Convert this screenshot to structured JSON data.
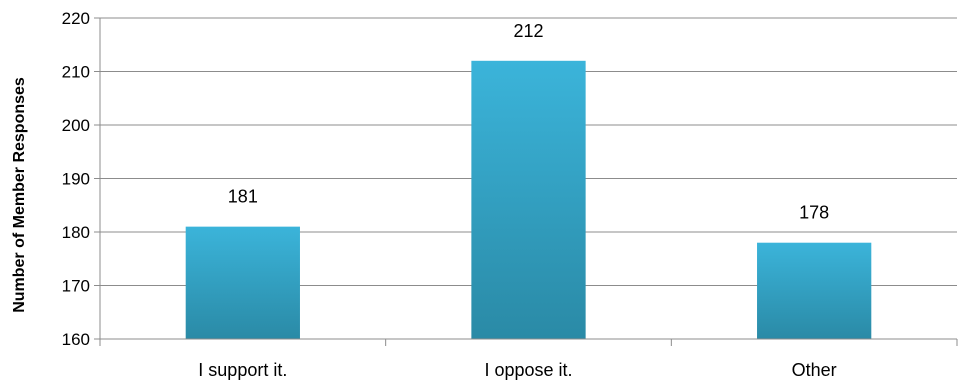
{
  "chart_data": {
    "type": "bar",
    "title": "",
    "xlabel": "",
    "ylabel": "Number of Member Responses",
    "categories": [
      "I support it.",
      "I oppose it.",
      "Other"
    ],
    "values": [
      181,
      212,
      178
    ],
    "ylim": [
      160,
      220
    ],
    "yticks": [
      160,
      170,
      180,
      190,
      200,
      210,
      220
    ],
    "grid": true,
    "legend": "none",
    "colors": {
      "bar_top": "#3bb4da",
      "bar_bottom": "#2a8aa6",
      "grid": "#8c8c8c",
      "axis": "#8c8c8c"
    }
  }
}
